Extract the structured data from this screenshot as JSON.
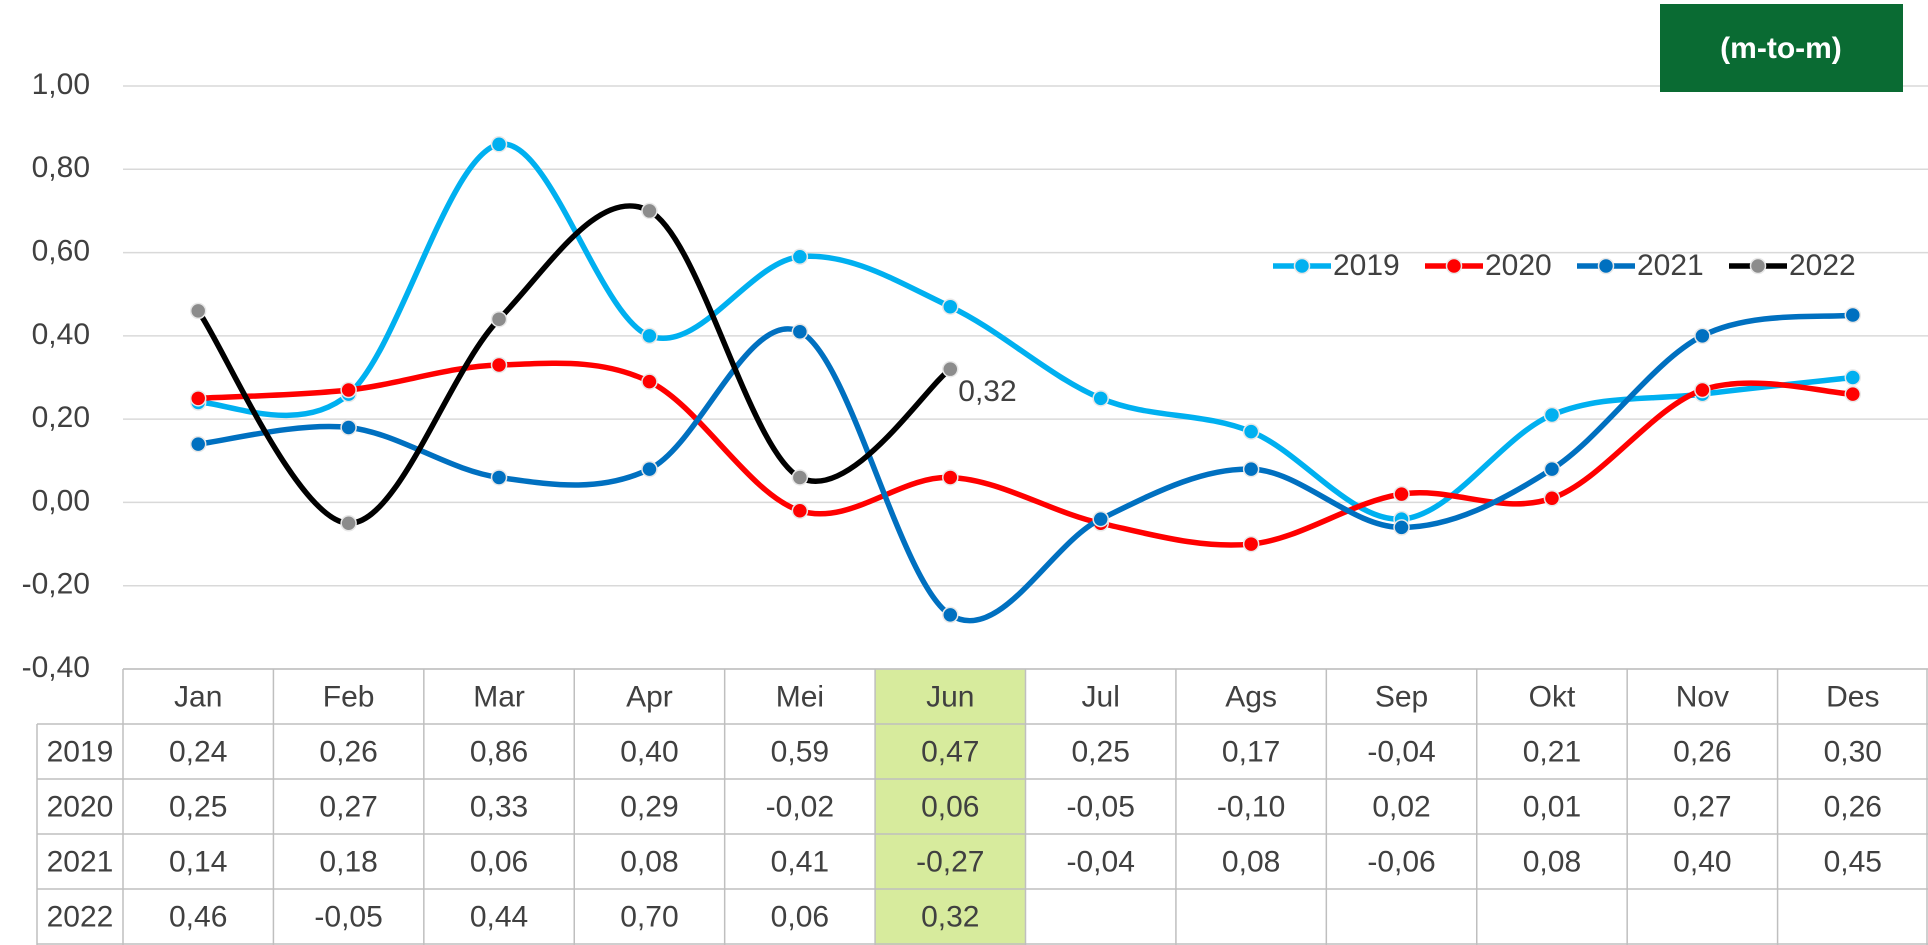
{
  "chart_data": {
    "type": "line",
    "annotation": "(m-to-m)",
    "categories": [
      "Jan",
      "Feb",
      "Mar",
      "Apr",
      "Mei",
      "Jun",
      "Jul",
      "Ags",
      "Sep",
      "Okt",
      "Nov",
      "Des"
    ],
    "series": [
      {
        "name": "2019",
        "color": "#00b0f0",
        "marker_color": "#00b0f0",
        "values": [
          0.24,
          0.26,
          0.86,
          0.4,
          0.59,
          0.47,
          0.25,
          0.17,
          -0.04,
          0.21,
          0.26,
          0.3
        ],
        "value_labels": [
          "0,24",
          "0,26",
          "0,86",
          "0,40",
          "0,59",
          "0,47",
          "0,25",
          "0,17",
          "-0,04",
          "0,21",
          "0,26",
          "0,30"
        ]
      },
      {
        "name": "2020",
        "color": "#ff0000",
        "marker_color": "#ff0000",
        "values": [
          0.25,
          0.27,
          0.33,
          0.29,
          -0.02,
          0.06,
          -0.05,
          -0.1,
          0.02,
          0.01,
          0.27,
          0.26
        ],
        "value_labels": [
          "0,25",
          "0,27",
          "0,33",
          "0,29",
          "-0,02",
          "0,06",
          "-0,05",
          "-0,10",
          "0,02",
          "0,01",
          "0,27",
          "0,26"
        ]
      },
      {
        "name": "2021",
        "color": "#0070c0",
        "marker_color": "#0070c0",
        "values": [
          0.14,
          0.18,
          0.06,
          0.08,
          0.41,
          -0.27,
          -0.04,
          0.08,
          -0.06,
          0.08,
          0.4,
          0.45
        ],
        "value_labels": [
          "0,14",
          "0,18",
          "0,06",
          "0,08",
          "0,41",
          "-0,27",
          "-0,04",
          "0,08",
          "-0,06",
          "0,08",
          "0,40",
          "0,45"
        ]
      },
      {
        "name": "2022",
        "color": "#000000",
        "marker_color": "#8c8c8c",
        "values": [
          0.46,
          -0.05,
          0.44,
          0.7,
          0.06,
          0.32,
          null,
          null,
          null,
          null,
          null,
          null
        ],
        "value_labels": [
          "0,46",
          "-0,05",
          "0,44",
          "0,70",
          "0,06",
          "0,32",
          null,
          null,
          null,
          null,
          null,
          null
        ],
        "label_index": 5
      }
    ],
    "ylim": [
      -0.4,
      1.0
    ],
    "yticks": [
      {
        "value": -0.4,
        "label": "-0,40"
      },
      {
        "value": -0.2,
        "label": "-0,20"
      },
      {
        "value": 0,
        "label": "0,00"
      },
      {
        "value": 0.2,
        "label": "0,20"
      },
      {
        "value": 0.4,
        "label": "0,40"
      },
      {
        "value": 0.6,
        "label": "0,60"
      },
      {
        "value": 0.8,
        "label": "0,80"
      },
      {
        "value": 1.0,
        "label": "1,00"
      }
    ],
    "grid": true,
    "legend": "top-right",
    "highlight_index": 5,
    "highlight_color": "#d7eb9d",
    "annotation_color": "#0a6b33"
  }
}
